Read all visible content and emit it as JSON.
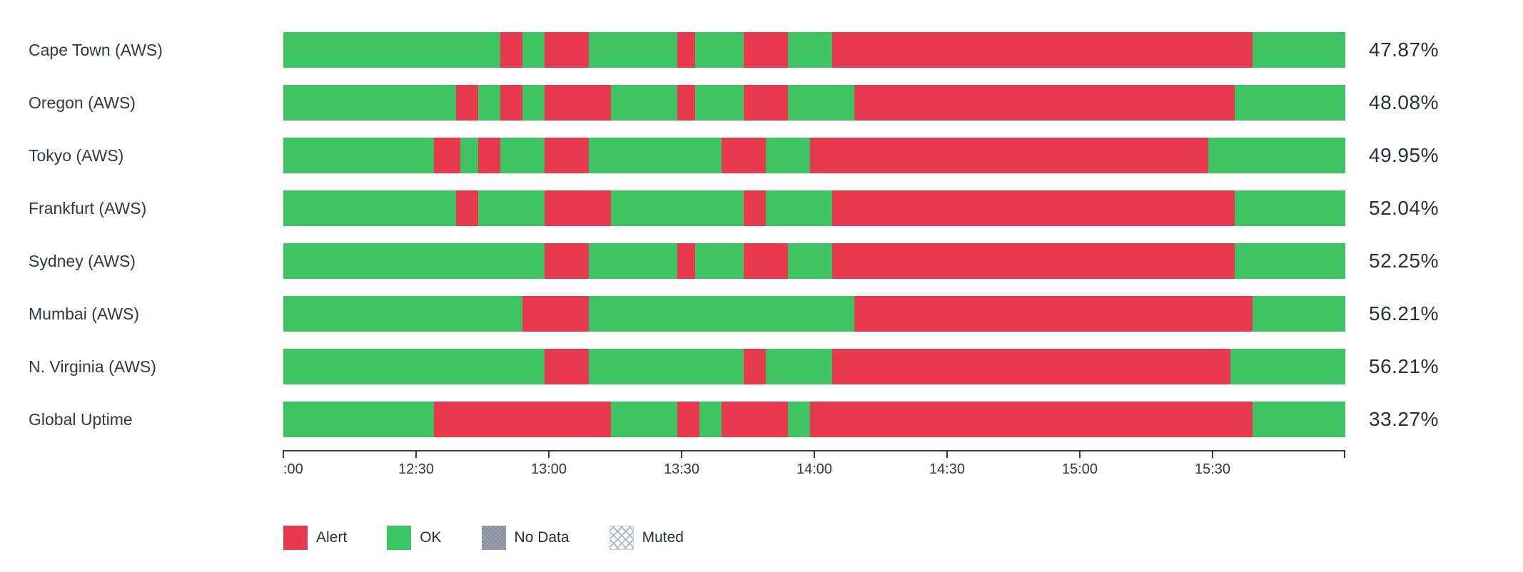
{
  "colors": {
    "alert": "#e8394f",
    "ok": "#3ec463",
    "no_data": "#919aa6",
    "text": "#2c3a45",
    "axis": "#2c3e49"
  },
  "legend": {
    "items": [
      {
        "id": "alert",
        "label": "Alert"
      },
      {
        "id": "ok",
        "label": "OK"
      },
      {
        "id": "no_data",
        "label": "No Data"
      },
      {
        "id": "muted",
        "label": "Muted"
      }
    ]
  },
  "chart_data": {
    "type": "status-timeline-bar",
    "description": "Uptime status timeline per region; segments are [start_minute, end_minute, status] measured from 12:00 over a 240-minute window ending 16:00.",
    "x_axis": {
      "start": "12:00",
      "end": "16:00",
      "total_minutes": 240,
      "ticks": [
        {
          "m": 0,
          "label": ":00",
          "edge": true
        },
        {
          "m": 30,
          "label": "12:30"
        },
        {
          "m": 60,
          "label": "13:00"
        },
        {
          "m": 90,
          "label": "13:30"
        },
        {
          "m": 120,
          "label": "14:00"
        },
        {
          "m": 150,
          "label": "14:30"
        },
        {
          "m": 180,
          "label": "15:00"
        },
        {
          "m": 210,
          "label": "15:30"
        },
        {
          "m": 240,
          "label": ""
        }
      ]
    },
    "rows": [
      {
        "label": "Cape Town (AWS)",
        "uptime": "47.87%",
        "segments": [
          [
            0,
            49,
            "ok"
          ],
          [
            49,
            54,
            "alert"
          ],
          [
            54,
            59,
            "ok"
          ],
          [
            59,
            69,
            "alert"
          ],
          [
            69,
            89,
            "ok"
          ],
          [
            89,
            93,
            "alert"
          ],
          [
            93,
            104,
            "ok"
          ],
          [
            104,
            114,
            "alert"
          ],
          [
            114,
            124,
            "ok"
          ],
          [
            124,
            219,
            "alert"
          ],
          [
            219,
            240,
            "ok"
          ]
        ]
      },
      {
        "label": "Oregon (AWS)",
        "uptime": "48.08%",
        "segments": [
          [
            0,
            39,
            "ok"
          ],
          [
            39,
            44,
            "alert"
          ],
          [
            44,
            49,
            "ok"
          ],
          [
            49,
            54,
            "alert"
          ],
          [
            54,
            59,
            "ok"
          ],
          [
            59,
            74,
            "alert"
          ],
          [
            74,
            89,
            "ok"
          ],
          [
            89,
            93,
            "alert"
          ],
          [
            93,
            104,
            "ok"
          ],
          [
            104,
            114,
            "alert"
          ],
          [
            114,
            129,
            "ok"
          ],
          [
            129,
            215,
            "alert"
          ],
          [
            215,
            240,
            "ok"
          ]
        ]
      },
      {
        "label": "Tokyo (AWS)",
        "uptime": "49.95%",
        "segments": [
          [
            0,
            34,
            "ok"
          ],
          [
            34,
            40,
            "alert"
          ],
          [
            40,
            44,
            "ok"
          ],
          [
            44,
            49,
            "alert"
          ],
          [
            49,
            59,
            "ok"
          ],
          [
            59,
            69,
            "alert"
          ],
          [
            69,
            99,
            "ok"
          ],
          [
            99,
            109,
            "alert"
          ],
          [
            109,
            119,
            "ok"
          ],
          [
            119,
            209,
            "alert"
          ],
          [
            209,
            240,
            "ok"
          ]
        ]
      },
      {
        "label": "Frankfurt (AWS)",
        "uptime": "52.04%",
        "segments": [
          [
            0,
            39,
            "ok"
          ],
          [
            39,
            44,
            "alert"
          ],
          [
            44,
            59,
            "ok"
          ],
          [
            59,
            74,
            "alert"
          ],
          [
            74,
            104,
            "ok"
          ],
          [
            104,
            109,
            "alert"
          ],
          [
            109,
            124,
            "ok"
          ],
          [
            124,
            215,
            "alert"
          ],
          [
            215,
            240,
            "ok"
          ]
        ]
      },
      {
        "label": "Sydney (AWS)",
        "uptime": "52.25%",
        "segments": [
          [
            0,
            59,
            "ok"
          ],
          [
            59,
            69,
            "alert"
          ],
          [
            69,
            89,
            "ok"
          ],
          [
            89,
            93,
            "alert"
          ],
          [
            93,
            104,
            "ok"
          ],
          [
            104,
            114,
            "alert"
          ],
          [
            114,
            124,
            "ok"
          ],
          [
            124,
            215,
            "alert"
          ],
          [
            215,
            240,
            "ok"
          ]
        ]
      },
      {
        "label": "Mumbai (AWS)",
        "uptime": "56.21%",
        "segments": [
          [
            0,
            54,
            "ok"
          ],
          [
            54,
            69,
            "alert"
          ],
          [
            69,
            129,
            "ok"
          ],
          [
            129,
            219,
            "alert"
          ],
          [
            219,
            240,
            "ok"
          ]
        ]
      },
      {
        "label": "N. Virginia (AWS)",
        "uptime": "56.21%",
        "segments": [
          [
            0,
            59,
            "ok"
          ],
          [
            59,
            69,
            "alert"
          ],
          [
            69,
            104,
            "ok"
          ],
          [
            104,
            109,
            "alert"
          ],
          [
            109,
            124,
            "ok"
          ],
          [
            124,
            214,
            "alert"
          ],
          [
            214,
            240,
            "ok"
          ]
        ]
      },
      {
        "label": "Global Uptime",
        "uptime": "33.27%",
        "segments": [
          [
            0,
            34,
            "ok"
          ],
          [
            34,
            74,
            "alert"
          ],
          [
            74,
            89,
            "ok"
          ],
          [
            89,
            94,
            "alert"
          ],
          [
            94,
            99,
            "ok"
          ],
          [
            99,
            114,
            "alert"
          ],
          [
            114,
            119,
            "ok"
          ],
          [
            119,
            219,
            "alert"
          ],
          [
            219,
            240,
            "ok"
          ]
        ]
      }
    ]
  }
}
